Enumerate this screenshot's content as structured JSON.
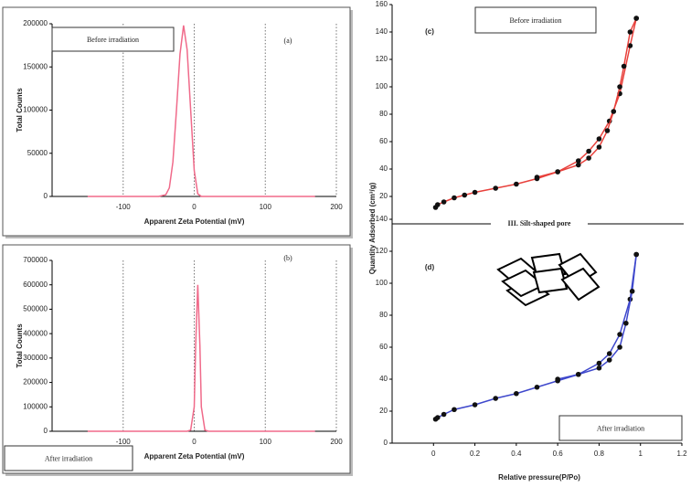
{
  "chart_data": [
    {
      "type": "line",
      "label": "(a)",
      "note": "Before irradiation",
      "ylabel": "Total Counts",
      "xlabel": "Apparent Zeta Potential (mV)",
      "xlim": [
        -200,
        200
      ],
      "xticks": [
        -100,
        0,
        100,
        200
      ],
      "ylim": [
        0,
        200000
      ],
      "yticks": [
        0,
        50000,
        100000,
        150000,
        200000
      ],
      "grid": true,
      "series": [
        {
          "color": "#f06a8a",
          "x": [
            -150,
            -50,
            -40,
            -35,
            -30,
            -25,
            -20,
            -15,
            -10,
            -5,
            0,
            5,
            10,
            170
          ],
          "values": [
            0,
            0,
            2000,
            10000,
            40000,
            100000,
            165000,
            198000,
            170000,
            100000,
            30000,
            3000,
            0,
            0
          ]
        }
      ]
    },
    {
      "type": "line",
      "label": "(b)",
      "note": "After irradiation",
      "ylabel": "Total Counts",
      "xlabel": "Apparent Zeta Potential (mV)",
      "xlim": [
        -200,
        200
      ],
      "xticks": [
        -100,
        0,
        100,
        200
      ],
      "ylim": [
        0,
        700000
      ],
      "yticks": [
        0,
        100000,
        200000,
        300000,
        400000,
        500000,
        600000,
        700000
      ],
      "grid": true,
      "series": [
        {
          "color": "#f06a8a",
          "x": [
            -150,
            -10,
            -5,
            0,
            2,
            5,
            8,
            10,
            15,
            20,
            170
          ],
          "values": [
            0,
            0,
            5000,
            100000,
            350000,
            600000,
            350000,
            100000,
            5000,
            0,
            0
          ]
        }
      ]
    },
    {
      "type": "line",
      "label": "(c)",
      "note": "Before irradiation",
      "markers": true,
      "xlim": [
        -0.2,
        1.2
      ],
      "ylim": [
        0,
        160
      ],
      "yticks": [
        20,
        40,
        60,
        80,
        100,
        120,
        140,
        160
      ],
      "series": [
        {
          "color": "#e8413c",
          "x": [
            0.01,
            0.02,
            0.05,
            0.1,
            0.15,
            0.2,
            0.3,
            0.4,
            0.5,
            0.6,
            0.7,
            0.75,
            0.8,
            0.85,
            0.9,
            0.95,
            0.98
          ],
          "values": [
            12,
            14,
            16,
            19,
            21,
            23,
            26,
            29,
            33,
            38,
            46,
            53,
            62,
            75,
            95,
            130,
            150
          ]
        },
        {
          "color": "#e8413c",
          "x": [
            0.98,
            0.95,
            0.92,
            0.9,
            0.87,
            0.84,
            0.8,
            0.75,
            0.7,
            0.6,
            0.5
          ],
          "values": [
            150,
            140,
            115,
            100,
            82,
            68,
            56,
            48,
            43,
            38,
            34
          ]
        }
      ]
    },
    {
      "type": "line",
      "label": "(d)",
      "note": "After irradiation",
      "markers": true,
      "xlim": [
        -0.2,
        1.2
      ],
      "xticks": [
        0,
        0.2,
        0.4,
        0.6,
        0.8,
        1,
        1.2
      ],
      "ylim": [
        0,
        140
      ],
      "yticks": [
        0,
        20,
        40,
        60,
        80,
        100,
        120,
        140
      ],
      "series": [
        {
          "color": "#3f48cc",
          "x": [
            0.01,
            0.02,
            0.05,
            0.1,
            0.2,
            0.3,
            0.4,
            0.5,
            0.6,
            0.7,
            0.8,
            0.85,
            0.9,
            0.95,
            0.98
          ],
          "values": [
            15,
            16,
            18,
            21,
            24,
            28,
            31,
            35,
            39,
            43,
            50,
            56,
            68,
            90,
            118
          ]
        },
        {
          "color": "#3f48cc",
          "x": [
            0.98,
            0.96,
            0.93,
            0.9,
            0.85,
            0.8,
            0.7,
            0.6
          ],
          "values": [
            118,
            95,
            75,
            60,
            52,
            47,
            43,
            40
          ]
        }
      ]
    }
  ],
  "figure": {
    "ylabel": "Quantity Adsorbed (cm³/g)",
    "xlabel": "Relative pressure(P/Po)",
    "divider": "III. Silt-shaped pore"
  }
}
